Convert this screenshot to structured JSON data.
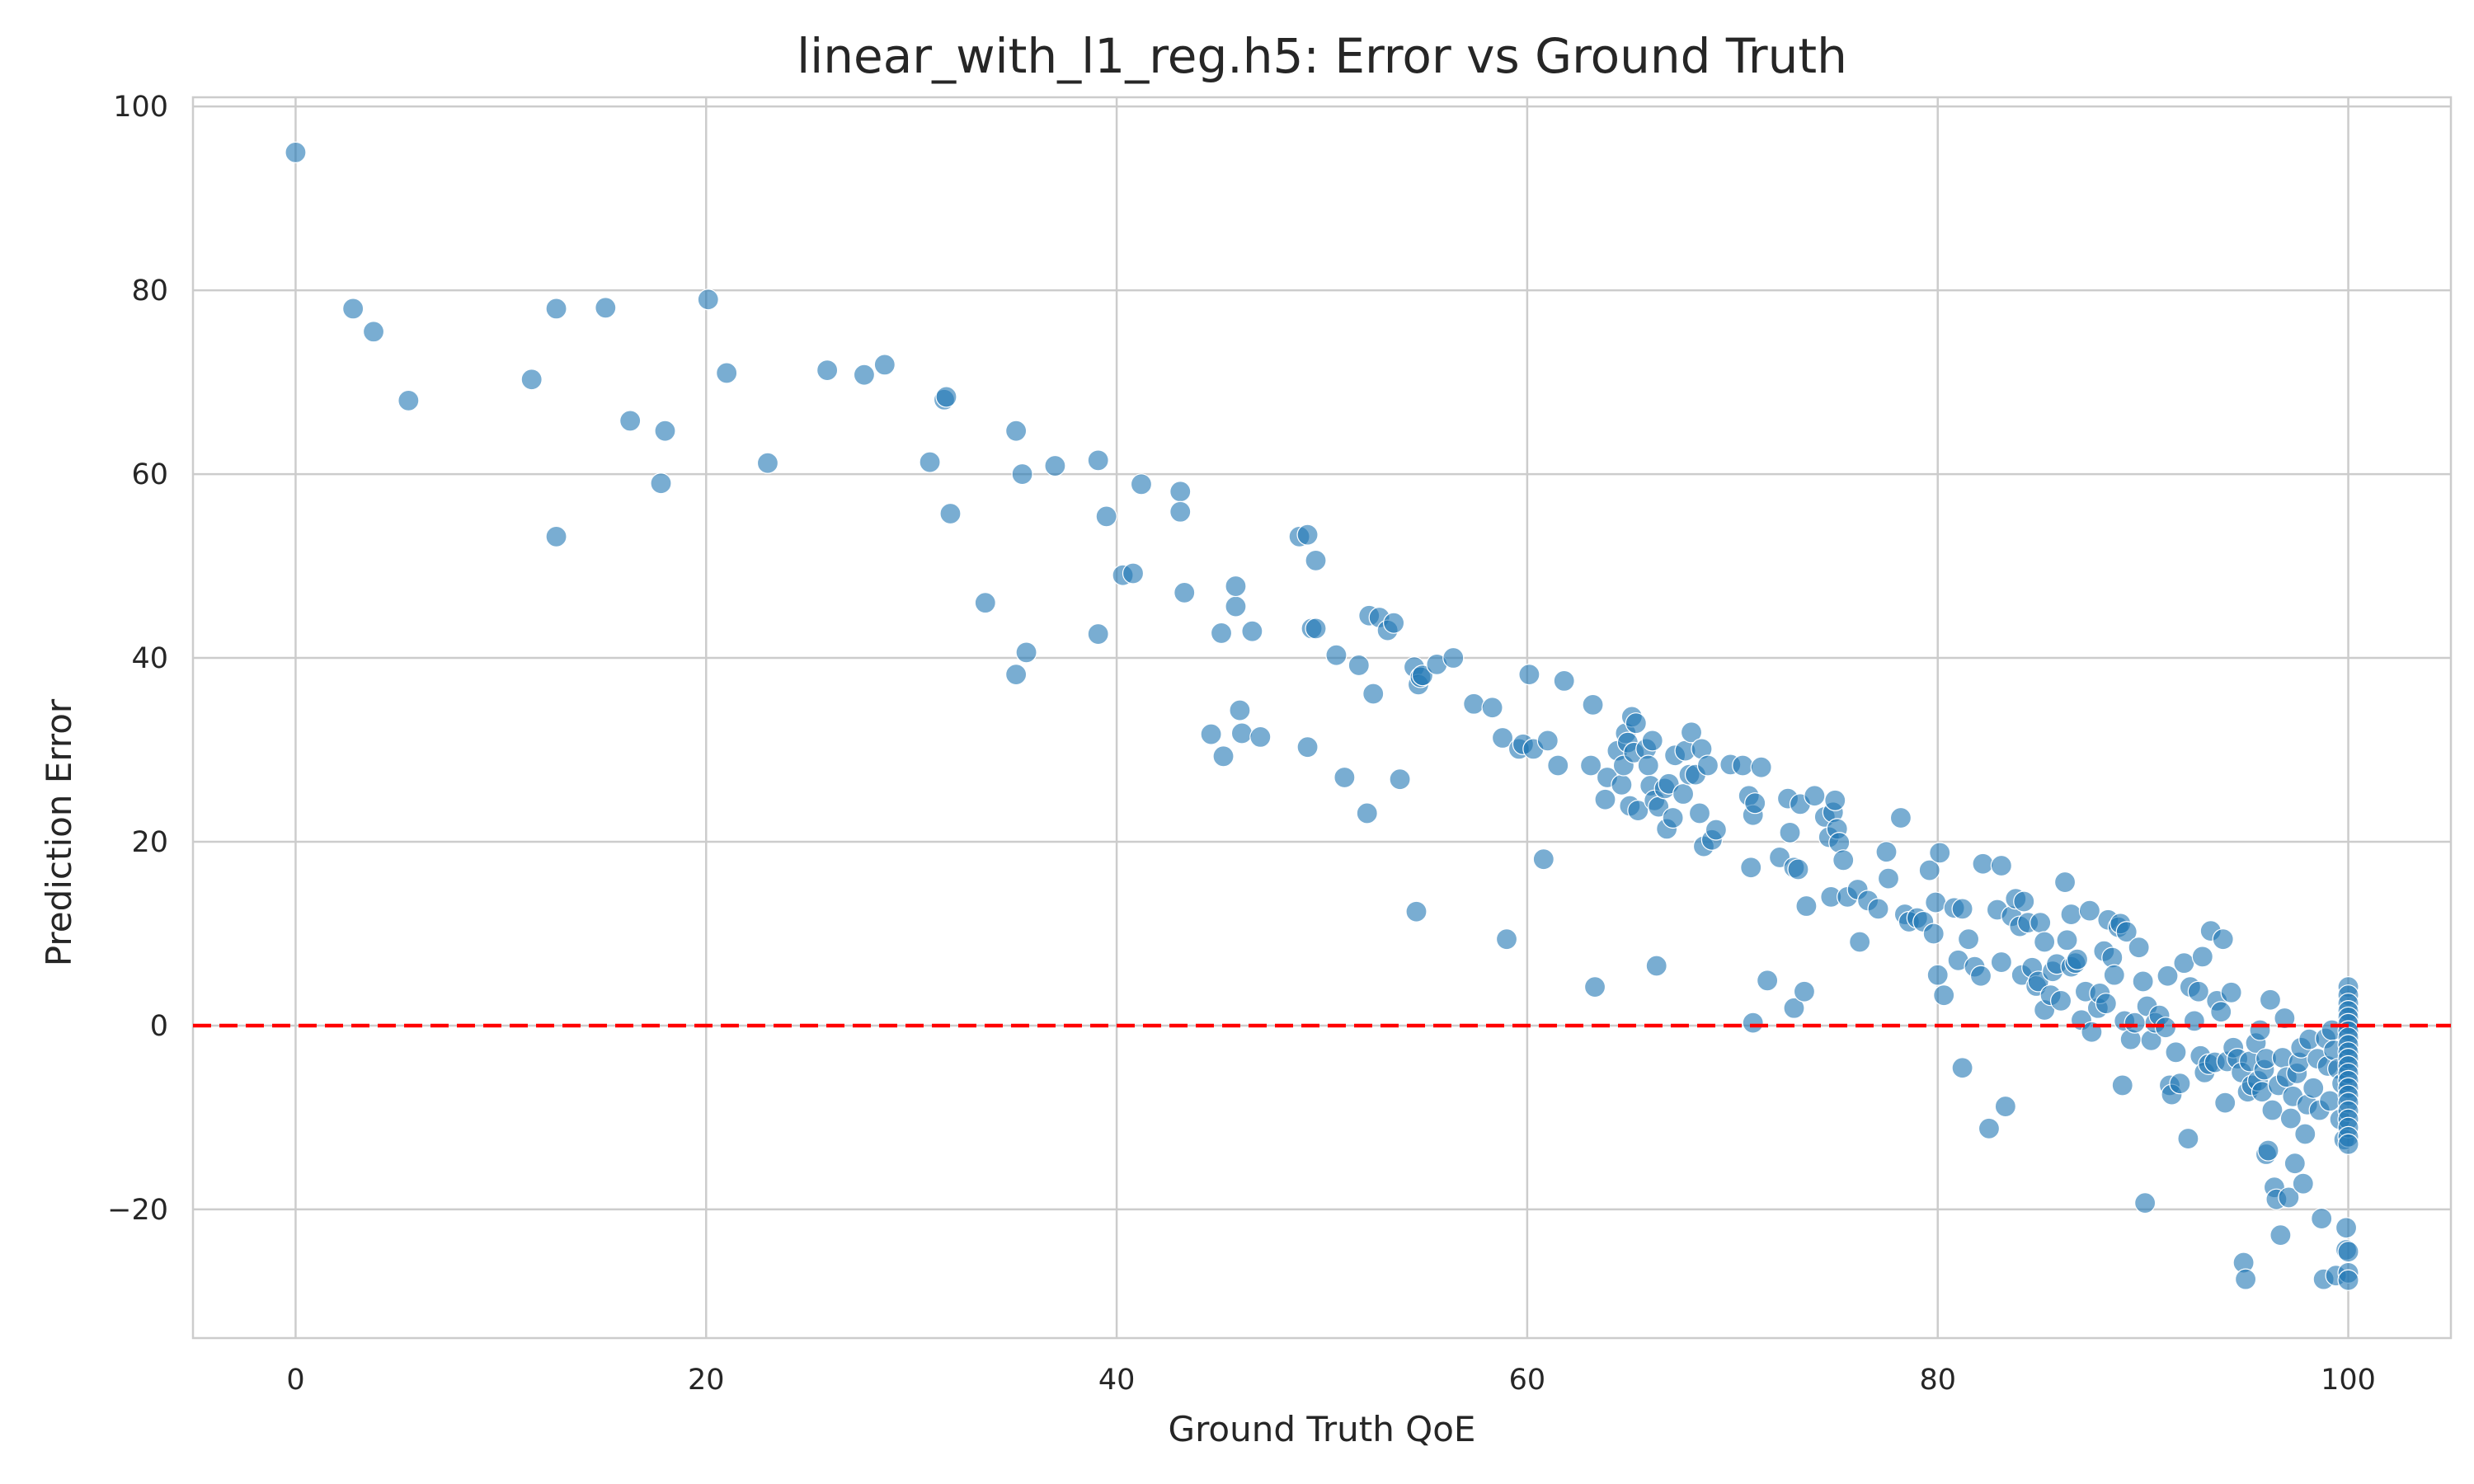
{
  "chart_data": {
    "type": "scatter",
    "title": "linear_with_l1_reg.h5: Error vs Ground Truth",
    "xlabel": "Ground Truth QoE",
    "ylabel": "Prediction Error",
    "xlim": [
      -5,
      105
    ],
    "ylim": [
      -34,
      101
    ],
    "xticks": [
      0,
      20,
      40,
      60,
      80,
      100
    ],
    "yticks": [
      -20,
      0,
      20,
      40,
      60,
      80,
      100
    ],
    "xtick_labels": [
      "0",
      "20",
      "40",
      "60",
      "80",
      "100"
    ],
    "ytick_labels": [
      "−20",
      "0",
      "20",
      "40",
      "60",
      "80",
      "100"
    ],
    "grid": true,
    "reference_line": {
      "y": 0,
      "color": "#ff0000",
      "style": "dashed"
    },
    "point_color": "#1f77b4",
    "points": [
      [
        0,
        95
      ],
      [
        2.8,
        78
      ],
      [
        3.8,
        75.5
      ],
      [
        5.5,
        68
      ],
      [
        11.5,
        70.3
      ],
      [
        12.7,
        78
      ],
      [
        12.7,
        53.2
      ],
      [
        15.1,
        78.1
      ],
      [
        16.3,
        65.8
      ],
      [
        17.8,
        59
      ],
      [
        18,
        64.7
      ],
      [
        20.1,
        79
      ],
      [
        21,
        71
      ],
      [
        23,
        61.2
      ],
      [
        25.9,
        71.3
      ],
      [
        27.7,
        70.8
      ],
      [
        28.7,
        71.9
      ],
      [
        30.9,
        61.3
      ],
      [
        31.6,
        68.1
      ],
      [
        31.7,
        68.4
      ],
      [
        31.9,
        55.7
      ],
      [
        33.6,
        46
      ],
      [
        35.1,
        64.7
      ],
      [
        35.1,
        38.2
      ],
      [
        35.4,
        60
      ],
      [
        35.6,
        40.6
      ],
      [
        37,
        60.9
      ],
      [
        39.1,
        61.5
      ],
      [
        39.1,
        42.6
      ],
      [
        39.5,
        55.4
      ],
      [
        40.3,
        49
      ],
      [
        40.8,
        49.2
      ],
      [
        41.2,
        58.9
      ],
      [
        43.1,
        58.1
      ],
      [
        43.1,
        55.9
      ],
      [
        43.3,
        47.1
      ],
      [
        44.6,
        31.7
      ],
      [
        45.1,
        42.7
      ],
      [
        45.2,
        29.3
      ],
      [
        45.8,
        45.6
      ],
      [
        45.8,
        47.8
      ],
      [
        46,
        34.3
      ],
      [
        46.1,
        31.8
      ],
      [
        46.6,
        42.9
      ],
      [
        47,
        31.4
      ],
      [
        48.9,
        53.2
      ],
      [
        49.3,
        53.4
      ],
      [
        49.3,
        30.3
      ],
      [
        49.5,
        43.2
      ],
      [
        49.7,
        43.2
      ],
      [
        49.7,
        50.6
      ],
      [
        50.7,
        40.3
      ],
      [
        51.1,
        27
      ],
      [
        51.8,
        39.2
      ],
      [
        52.2,
        23.1
      ],
      [
        52.3,
        44.6
      ],
      [
        52.5,
        36.1
      ],
      [
        52.8,
        44.4
      ],
      [
        53.2,
        43
      ],
      [
        53.5,
        43.8
      ],
      [
        53.8,
        26.8
      ],
      [
        54.5,
        39
      ],
      [
        54.7,
        37.1
      ],
      [
        54.8,
        37.9
      ],
      [
        54.9,
        38.1
      ],
      [
        54.6,
        12.4
      ],
      [
        55.6,
        39.3
      ],
      [
        56.4,
        40
      ],
      [
        57.4,
        35
      ],
      [
        58.3,
        34.6
      ],
      [
        58.8,
        31.3
      ],
      [
        59,
        9.4
      ],
      [
        59.6,
        30.1
      ],
      [
        59.8,
        30.6
      ],
      [
        60.1,
        38.2
      ],
      [
        60.3,
        30.1
      ],
      [
        60.8,
        18.1
      ],
      [
        61,
        31
      ],
      [
        61.5,
        28.3
      ],
      [
        61.8,
        37.5
      ],
      [
        63.1,
        28.3
      ],
      [
        63.2,
        34.9
      ],
      [
        63.3,
        4.2
      ],
      [
        63.8,
        24.6
      ],
      [
        63.9,
        27
      ],
      [
        64.4,
        29.9
      ],
      [
        64.6,
        26.2
      ],
      [
        64.7,
        28.3
      ],
      [
        64.8,
        31.8
      ],
      [
        64.9,
        30.8
      ],
      [
        65,
        23.9
      ],
      [
        65.1,
        33.6
      ],
      [
        65.2,
        29.7
      ],
      [
        65.3,
        32.9
      ],
      [
        65.4,
        23.4
      ],
      [
        65.8,
        30.1
      ],
      [
        65.9,
        28.3
      ],
      [
        66,
        26.1
      ],
      [
        66.1,
        31
      ],
      [
        66.2,
        24.5
      ],
      [
        66.3,
        6.5
      ],
      [
        66.4,
        23.8
      ],
      [
        66.7,
        25.8
      ],
      [
        66.8,
        21.4
      ],
      [
        66.9,
        26.3
      ],
      [
        67.1,
        22.6
      ],
      [
        67.2,
        29.4
      ],
      [
        67.6,
        25.2
      ],
      [
        67.7,
        29.9
      ],
      [
        67.9,
        27.3
      ],
      [
        68,
        31.9
      ],
      [
        68.2,
        27.3
      ],
      [
        68.4,
        23.1
      ],
      [
        68.5,
        30.1
      ],
      [
        68.6,
        19.5
      ],
      [
        68.8,
        28.3
      ],
      [
        69,
        20.2
      ],
      [
        69.2,
        21.3
      ],
      [
        69.9,
        28.4
      ],
      [
        70.5,
        28.3
      ],
      [
        70.8,
        25
      ],
      [
        70.9,
        17.2
      ],
      [
        71,
        22.9
      ],
      [
        71,
        0.3
      ],
      [
        71.1,
        24.2
      ],
      [
        71.4,
        28.1
      ],
      [
        71.7,
        4.9
      ],
      [
        72.3,
        18.3
      ],
      [
        72.7,
        24.7
      ],
      [
        72.8,
        21
      ],
      [
        73,
        17.2
      ],
      [
        73,
        1.9
      ],
      [
        73.2,
        17
      ],
      [
        73.3,
        24.1
      ],
      [
        73.5,
        3.7
      ],
      [
        73.6,
        13
      ],
      [
        74,
        25
      ],
      [
        74.5,
        22.7
      ],
      [
        74.7,
        20.5
      ],
      [
        74.8,
        14
      ],
      [
        74.9,
        23.2
      ],
      [
        75,
        24.5
      ],
      [
        75.1,
        21.4
      ],
      [
        75.2,
        19.9
      ],
      [
        75.4,
        18
      ],
      [
        75.6,
        14
      ],
      [
        76.1,
        14.8
      ],
      [
        76.2,
        9.1
      ],
      [
        76.6,
        13.6
      ],
      [
        77.1,
        12.7
      ],
      [
        77.5,
        18.9
      ],
      [
        77.6,
        16
      ],
      [
        78.2,
        22.6
      ],
      [
        78.4,
        12.1
      ],
      [
        78.6,
        11.3
      ],
      [
        79,
        11.7
      ],
      [
        79.3,
        11.3
      ],
      [
        79.6,
        16.9
      ],
      [
        79.8,
        10
      ],
      [
        79.9,
        13.4
      ],
      [
        80,
        5.5
      ],
      [
        80.1,
        18.8
      ],
      [
        80.3,
        3.3
      ],
      [
        80.8,
        12.8
      ],
      [
        81,
        7.1
      ],
      [
        81.2,
        12.7
      ],
      [
        81.2,
        -4.6
      ],
      [
        81.5,
        9.4
      ],
      [
        81.8,
        6.4
      ],
      [
        82.1,
        5.4
      ],
      [
        82.2,
        17.6
      ],
      [
        82.5,
        -11.2
      ],
      [
        82.9,
        12.6
      ],
      [
        83.1,
        17.4
      ],
      [
        83.1,
        6.9
      ],
      [
        83.3,
        -8.8
      ],
      [
        83.6,
        11.9
      ],
      [
        83.8,
        13.8
      ],
      [
        84,
        10.8
      ],
      [
        84.1,
        5.5
      ],
      [
        84.2,
        13.5
      ],
      [
        84.4,
        11.2
      ],
      [
        84.6,
        6.3
      ],
      [
        84.8,
        4.3
      ],
      [
        84.9,
        4.8
      ],
      [
        85,
        11.2
      ],
      [
        85.2,
        9.1
      ],
      [
        85.2,
        1.7
      ],
      [
        85.5,
        3.3
      ],
      [
        85.6,
        5.9
      ],
      [
        85.8,
        6.7
      ],
      [
        86,
        2.7
      ],
      [
        86.2,
        15.6
      ],
      [
        86.3,
        9.3
      ],
      [
        86.5,
        12.1
      ],
      [
        86.5,
        6.4
      ],
      [
        86.7,
        6.8
      ],
      [
        86.8,
        7.2
      ],
      [
        87,
        0.6
      ],
      [
        87.2,
        3.7
      ],
      [
        87.4,
        12.5
      ],
      [
        87.5,
        -0.7
      ],
      [
        87.8,
        1.9
      ],
      [
        87.9,
        3.5
      ],
      [
        88.1,
        8.1
      ],
      [
        88.2,
        2.4
      ],
      [
        88.3,
        11.5
      ],
      [
        88.5,
        7.4
      ],
      [
        88.6,
        5.5
      ],
      [
        88.8,
        10.7
      ],
      [
        88.9,
        11.1
      ],
      [
        89,
        -6.5
      ],
      [
        89.1,
        0.5
      ],
      [
        89.2,
        10.2
      ],
      [
        89.4,
        -1.5
      ],
      [
        89.6,
        0.3
      ],
      [
        89.8,
        8.5
      ],
      [
        90,
        4.8
      ],
      [
        90.1,
        -19.3
      ],
      [
        90.2,
        2.1
      ],
      [
        90.4,
        -1.6
      ],
      [
        90.6,
        0.3
      ],
      [
        90.8,
        1.1
      ],
      [
        91.1,
        -0.2
      ],
      [
        91.2,
        5.4
      ],
      [
        91.3,
        -6.5
      ],
      [
        91.4,
        -7.5
      ],
      [
        91.6,
        -2.9
      ],
      [
        91.8,
        -6.3
      ],
      [
        92,
        6.8
      ],
      [
        92.2,
        -12.3
      ],
      [
        92.3,
        4.2
      ],
      [
        92.5,
        0.5
      ],
      [
        92.7,
        3.7
      ],
      [
        92.8,
        -3.3
      ],
      [
        92.9,
        7.5
      ],
      [
        93,
        -5.1
      ],
      [
        93.2,
        -4.2
      ],
      [
        93.3,
        10.3
      ],
      [
        93.5,
        -4
      ],
      [
        93.6,
        2.7
      ],
      [
        93.8,
        1.5
      ],
      [
        93.9,
        9.4
      ],
      [
        94,
        -8.4
      ],
      [
        94.1,
        -3.9
      ],
      [
        94.3,
        3.6
      ],
      [
        94.4,
        -2.4
      ],
      [
        94.6,
        -3.6
      ],
      [
        94.8,
        -5.1
      ],
      [
        94.9,
        -25.8
      ],
      [
        95,
        -27.6
      ],
      [
        95.1,
        -7.2
      ],
      [
        95.2,
        -3.9
      ],
      [
        95.3,
        -6.5
      ],
      [
        95.5,
        -1.9
      ],
      [
        95.6,
        -6
      ],
      [
        95.7,
        -0.5
      ],
      [
        95.8,
        -7.2
      ],
      [
        95.9,
        -4.8
      ],
      [
        96,
        -3.6
      ],
      [
        96,
        -14
      ],
      [
        96.1,
        -13.6
      ],
      [
        96.2,
        2.8
      ],
      [
        96.3,
        -9.2
      ],
      [
        96.4,
        -17.6
      ],
      [
        96.5,
        -18.9
      ],
      [
        96.6,
        -6.5
      ],
      [
        96.7,
        -22.8
      ],
      [
        96.8,
        -3.5
      ],
      [
        96.9,
        0.8
      ],
      [
        97,
        -5.6
      ],
      [
        97.1,
        -18.7
      ],
      [
        97.2,
        -10.1
      ],
      [
        97.3,
        -7.7
      ],
      [
        97.4,
        -15
      ],
      [
        97.5,
        -5.2
      ],
      [
        97.6,
        -4
      ],
      [
        97.7,
        -2.4
      ],
      [
        97.8,
        -17.2
      ],
      [
        97.9,
        -11.8
      ],
      [
        98,
        -8.6
      ],
      [
        98.1,
        -1.5
      ],
      [
        98.3,
        -6.8
      ],
      [
        98.5,
        -3.6
      ],
      [
        98.6,
        -9.2
      ],
      [
        98.7,
        -21
      ],
      [
        98.8,
        -27.6
      ],
      [
        98.9,
        -1.4
      ],
      [
        99,
        -4.4
      ],
      [
        99.1,
        -8.2
      ],
      [
        99.2,
        -0.5
      ],
      [
        99.3,
        -2.7
      ],
      [
        99.4,
        -27.2
      ],
      [
        99.5,
        -4.7
      ],
      [
        99.6,
        -10.2
      ],
      [
        99.7,
        -6.3
      ],
      [
        99.8,
        -12.4
      ],
      [
        99.9,
        -22
      ],
      [
        99.9,
        -24.4
      ],
      [
        100,
        4.2
      ],
      [
        100,
        3.3
      ],
      [
        100,
        2.4
      ],
      [
        100,
        1.6
      ],
      [
        100,
        0.9
      ],
      [
        100,
        0.2
      ],
      [
        100,
        -0.6
      ],
      [
        100,
        -1.3
      ],
      [
        100,
        -2.1
      ],
      [
        100,
        -2.9
      ],
      [
        100,
        -3.6
      ],
      [
        100,
        -4.4
      ],
      [
        100,
        -5.2
      ],
      [
        100,
        -6
      ],
      [
        100,
        -6.8
      ],
      [
        100,
        -7.6
      ],
      [
        100,
        -8.4
      ],
      [
        100,
        -9.3
      ],
      [
        100,
        -10.2
      ],
      [
        100,
        -11.1
      ],
      [
        100,
        -12.1
      ],
      [
        100,
        -12.9
      ],
      [
        100,
        -24.6
      ],
      [
        100,
        -26.9
      ],
      [
        100,
        -27.7
      ]
    ]
  }
}
